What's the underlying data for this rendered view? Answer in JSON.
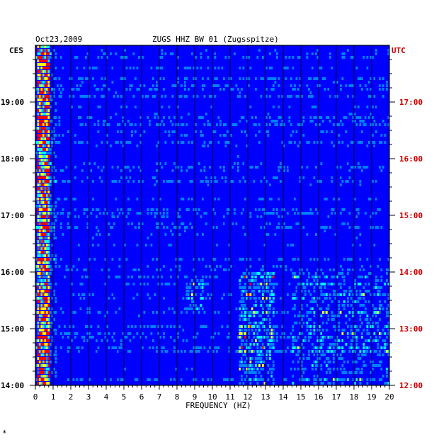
{
  "chart_data": {
    "type": "heatmap",
    "date": "Oct23,2009",
    "title": "ZUGS HHZ BW 01 (Zugsspitze)",
    "left_axis_label": "CES",
    "right_axis_label": "UTC",
    "xlabel": "FREQUENCY (HZ)",
    "x_ticks": [
      0,
      1,
      2,
      3,
      4,
      5,
      6,
      7,
      8,
      9,
      10,
      11,
      12,
      13,
      14,
      15,
      16,
      17,
      18,
      19,
      20
    ],
    "xlim": [
      0,
      20
    ],
    "left_time_labels": [
      "19:00",
      "18:00",
      "17:00",
      "16:00",
      "15:00",
      "14:00"
    ],
    "right_time_labels": [
      "17:00",
      "16:00",
      "15:00",
      "14:00",
      "13:00",
      "12:00"
    ],
    "time_range_hours": [
      14.0,
      20.0
    ],
    "grid": true,
    "colormap": [
      "#00008b",
      "#0000ff",
      "#0080ff",
      "#00ffff",
      "#ffff00",
      "#ff0000"
    ],
    "colors": {
      "frame": "#000000",
      "utc_text": "#cc0000",
      "background": "#ffffff"
    },
    "strong_activity": [
      {
        "freq_hz": [
          0.1,
          0.8
        ],
        "time": "all",
        "level": "high"
      },
      {
        "freq_hz": [
          11.5,
          13.5
        ],
        "time": "14:00-16:00",
        "level": "medium"
      },
      {
        "freq_hz": [
          8.5,
          9.5
        ],
        "time": "15:20-15:50",
        "level": "medium"
      },
      {
        "freq_hz": [
          14.5,
          20.0
        ],
        "time": "14:00-16:00",
        "level": "medium"
      }
    ],
    "footer_mark": "*"
  }
}
